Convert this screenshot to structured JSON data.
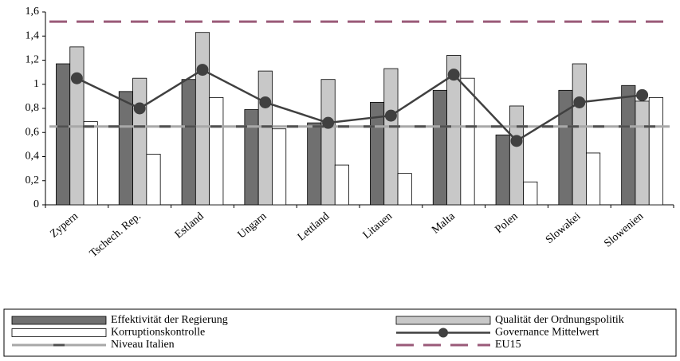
{
  "chart_data": {
    "type": "bar",
    "categories": [
      "Zypern",
      "Tschech. Rep.",
      "Estland",
      "Ungarn",
      "Lettland",
      "Litauen",
      "Malta",
      "Polen",
      "Slowakei",
      "Slowenien"
    ],
    "series": [
      {
        "name": "Effektivität der Regierung",
        "color": "#707070",
        "values": [
          1.17,
          0.94,
          1.04,
          0.79,
          0.68,
          0.85,
          0.95,
          0.58,
          0.95,
          0.99
        ]
      },
      {
        "name": "Qualität der Ordnungspolitik",
        "color": "#c8c8c8",
        "values": [
          1.31,
          1.05,
          1.43,
          1.11,
          1.04,
          1.13,
          1.24,
          0.82,
          1.17,
          0.86
        ]
      },
      {
        "name": "Korruptionskontrolle",
        "color": "#ffffff",
        "values": [
          0.69,
          0.42,
          0.89,
          0.63,
          0.33,
          0.26,
          1.05,
          0.19,
          0.43,
          0.89
        ]
      },
      {
        "name": "Governance Mittelwert",
        "type": "line",
        "color": "#404040",
        "values": [
          1.05,
          0.8,
          1.12,
          0.85,
          0.68,
          0.74,
          1.08,
          0.53,
          0.85,
          0.91
        ]
      }
    ],
    "reference_lines": [
      {
        "name": "Niveau Italien",
        "value": 0.65,
        "color": "#a8a8a8"
      },
      {
        "name": "EU15",
        "value": 1.52,
        "color": "#9a5a78"
      }
    ],
    "ylim": [
      0,
      1.6
    ],
    "yticks": [
      0,
      {
        "value": 0.2,
        "label": "0,2"
      },
      {
        "value": 0.4,
        "label": "0,4"
      },
      {
        "value": 0.6,
        "label": "0,6"
      },
      {
        "value": 0.8,
        "label": "0,8"
      },
      1,
      {
        "value": 1.2,
        "label": "1,2"
      },
      {
        "value": 1.4,
        "label": "1,4"
      },
      {
        "value": 1.6,
        "label": "1,6"
      }
    ],
    "grid": false
  }
}
